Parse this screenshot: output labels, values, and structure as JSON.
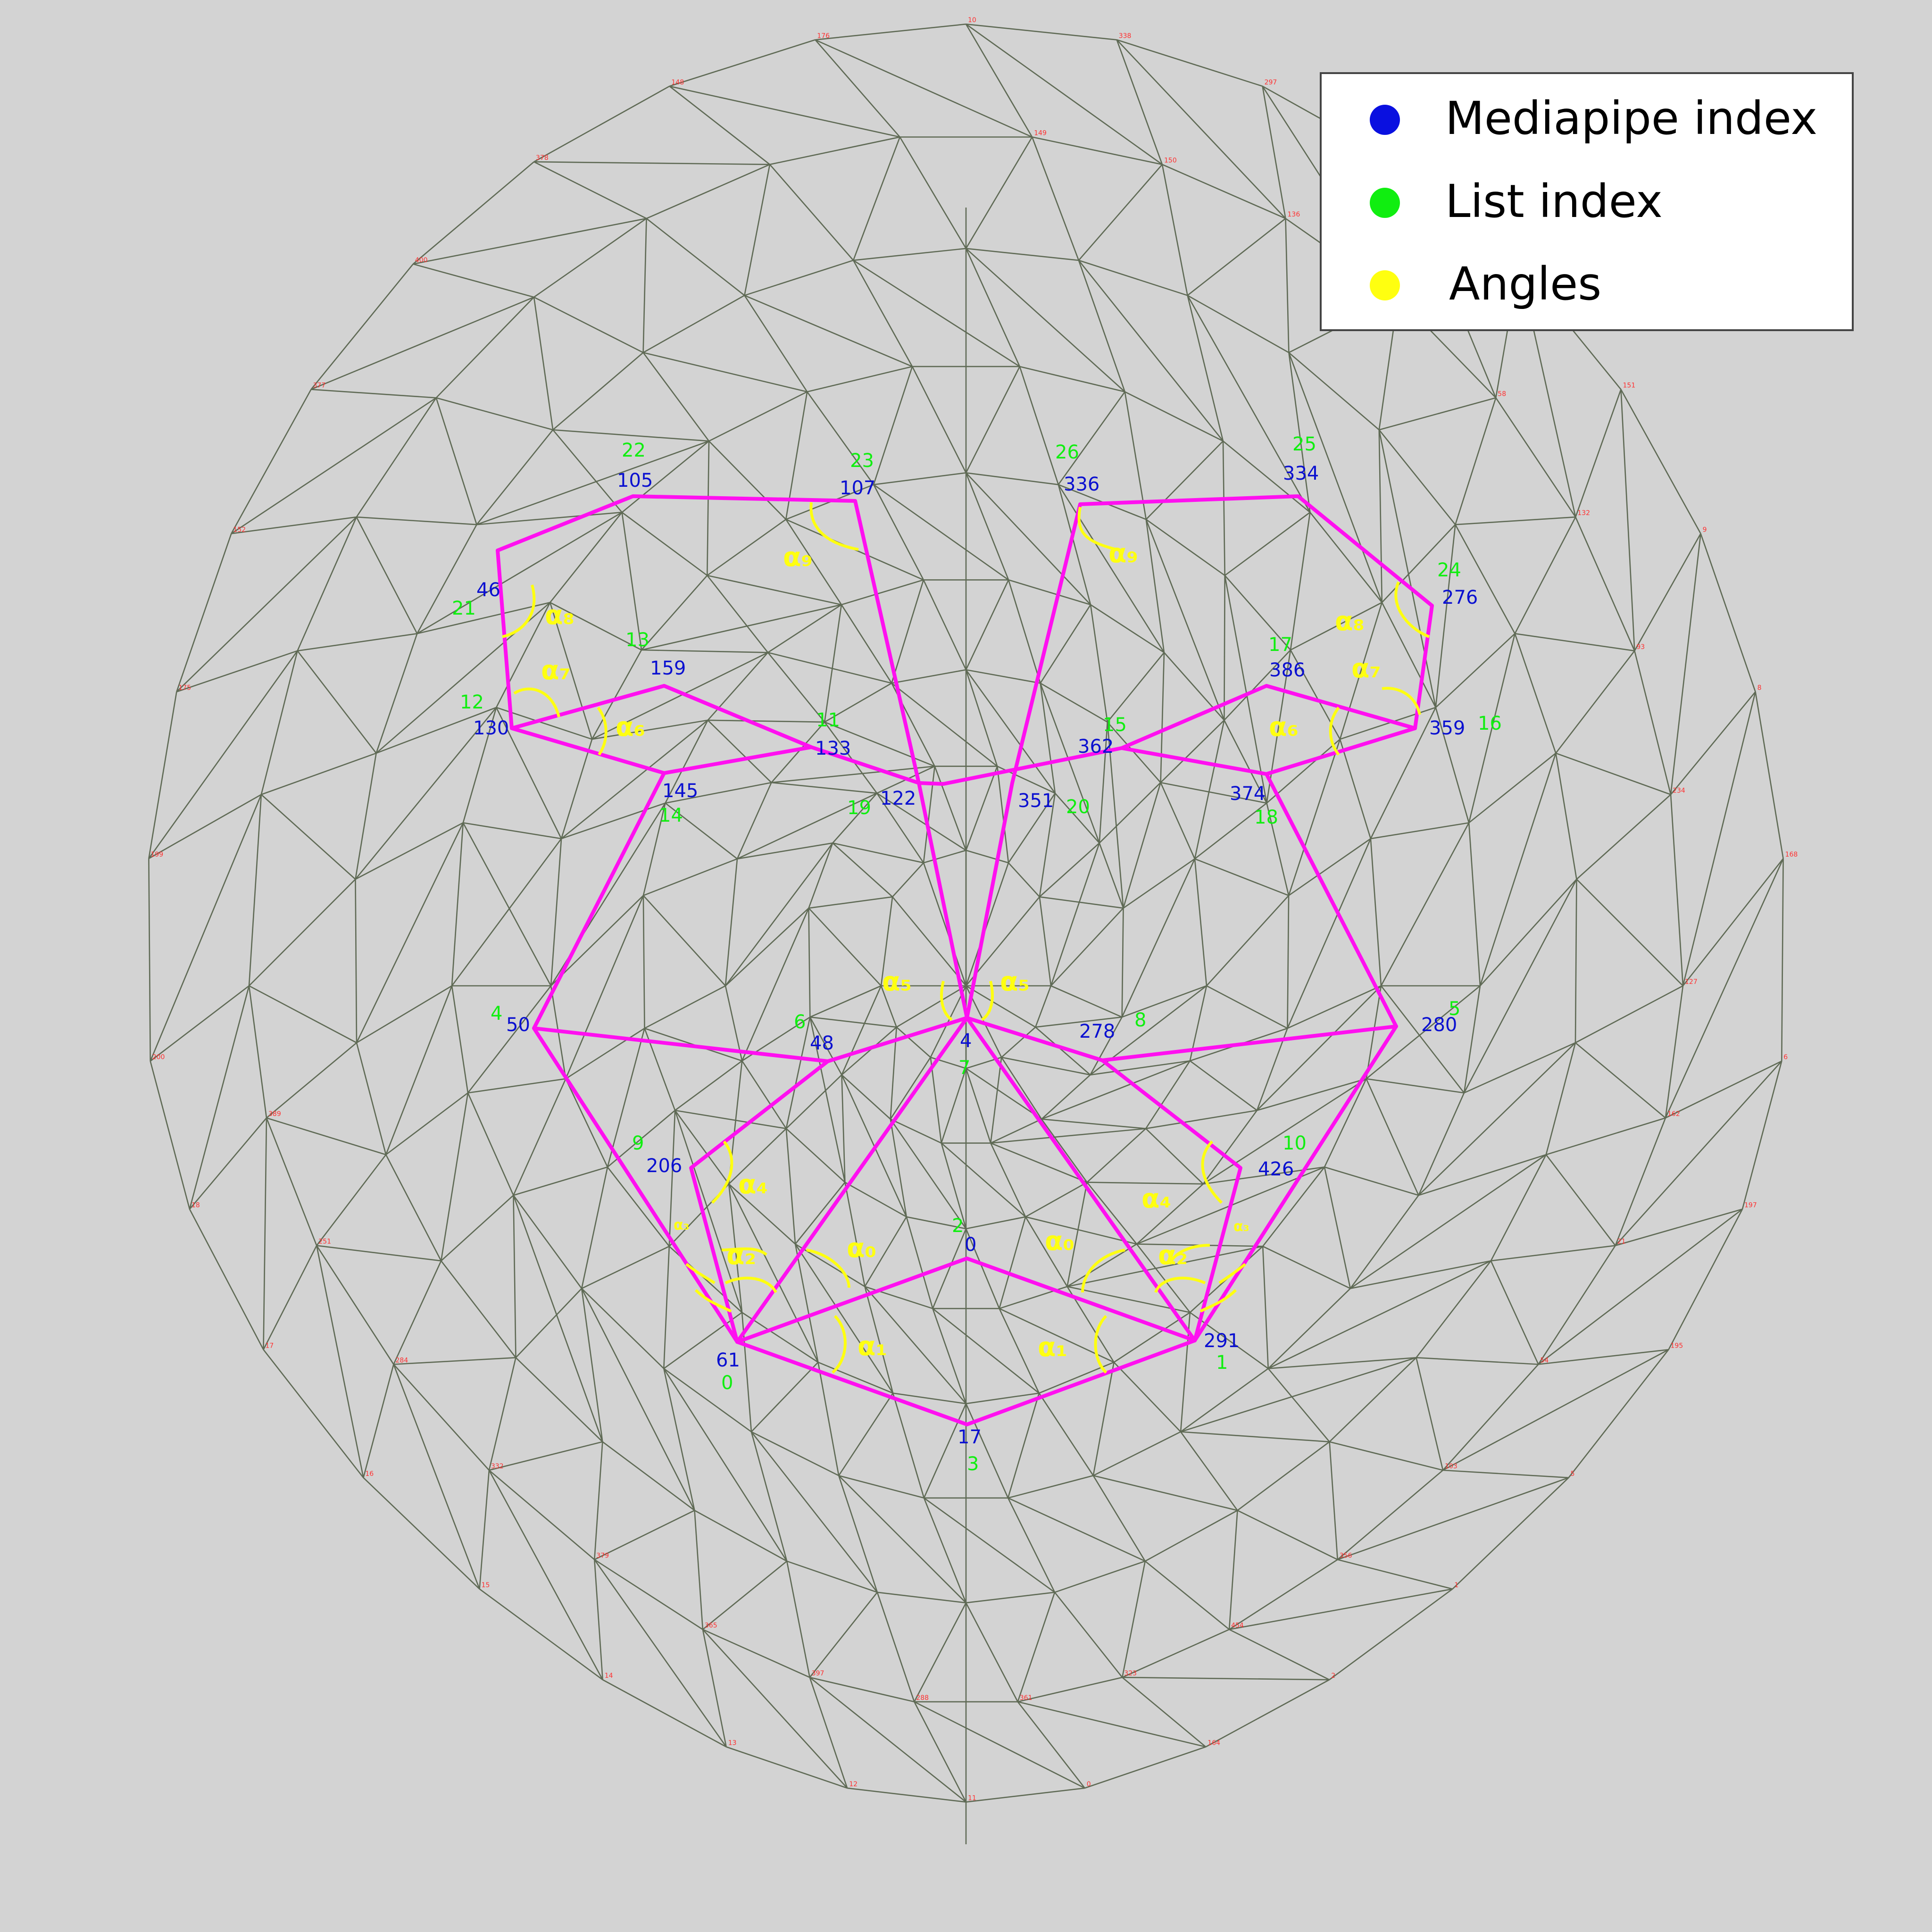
{
  "legend": {
    "items": [
      {
        "label": "Mediapipe index",
        "color": "#0a10e0"
      },
      {
        "label": "List index",
        "color": "#10ee10"
      },
      {
        "label": "Angles",
        "color": "#ffff10"
      }
    ]
  },
  "colors": {
    "background": "#d3d3d3",
    "mesh": "#5f6a55",
    "highlight": "#ff10f0",
    "mediapipe": "#0a10d0",
    "list": "#10ee10",
    "angle": "#ffff10"
  },
  "landmarks": [
    {
      "mp": "105",
      "li": "22"
    },
    {
      "mp": "107",
      "li": "23"
    },
    {
      "mp": "336",
      "li": "26"
    },
    {
      "mp": "334",
      "li": "25"
    },
    {
      "mp": "46",
      "li": "21"
    },
    {
      "mp": "276",
      "li": "24"
    },
    {
      "mp": "159",
      "li": "13"
    },
    {
      "mp": "386",
      "li": "17"
    },
    {
      "mp": "130",
      "li": "12"
    },
    {
      "mp": "359",
      "li": "16"
    },
    {
      "mp": "133",
      "li": "11"
    },
    {
      "mp": "362",
      "li": "15"
    },
    {
      "mp": "145",
      "li": "14"
    },
    {
      "mp": "374",
      "li": "18"
    },
    {
      "mp": "122",
      "li": "19"
    },
    {
      "mp": "351",
      "li": "20"
    },
    {
      "mp": "50",
      "li": "4"
    },
    {
      "mp": "280",
      "li": "5"
    },
    {
      "mp": "48",
      "li": "6"
    },
    {
      "mp": "278",
      "li": "8"
    },
    {
      "mp": "4",
      "li": "7"
    },
    {
      "mp": "206",
      "li": "9"
    },
    {
      "mp": "426",
      "li": "10"
    },
    {
      "mp": "0",
      "li": "2"
    },
    {
      "mp": "61",
      "li": "0"
    },
    {
      "mp": "291",
      "li": "1"
    },
    {
      "mp": "17",
      "li": "3"
    }
  ],
  "angles": [
    {
      "label": "α₉"
    },
    {
      "label": "α₉"
    },
    {
      "label": "α₈"
    },
    {
      "label": "α₈"
    },
    {
      "label": "α₇"
    },
    {
      "label": "α₇"
    },
    {
      "label": "α₆"
    },
    {
      "label": "α₆"
    },
    {
      "label": "α₅"
    },
    {
      "label": "α₅"
    },
    {
      "label": "α₄"
    },
    {
      "label": "α₄"
    },
    {
      "label": "α₀"
    },
    {
      "label": "α₀"
    },
    {
      "label": "α₂"
    },
    {
      "label": "α₂"
    },
    {
      "label": "α₃"
    },
    {
      "label": "α₃"
    },
    {
      "label": "α₁"
    },
    {
      "label": "α₁"
    }
  ],
  "tiny_labels": [
    "10",
    "338",
    "297",
    "109",
    "67",
    "151",
    "9",
    "8",
    "168",
    "6",
    "197",
    "195",
    "5",
    "1",
    "2",
    "164",
    "0",
    "11",
    "12",
    "13",
    "14",
    "15",
    "16",
    "17",
    "18",
    "200",
    "199",
    "175",
    "152",
    "377",
    "400",
    "378",
    "148",
    "176",
    "149",
    "150",
    "136",
    "172",
    "58",
    "132",
    "93",
    "234",
    "127",
    "162",
    "21",
    "54",
    "103",
    "356",
    "454",
    "323",
    "361",
    "288",
    "397",
    "365",
    "379",
    "332",
    "284",
    "251",
    "389"
  ]
}
